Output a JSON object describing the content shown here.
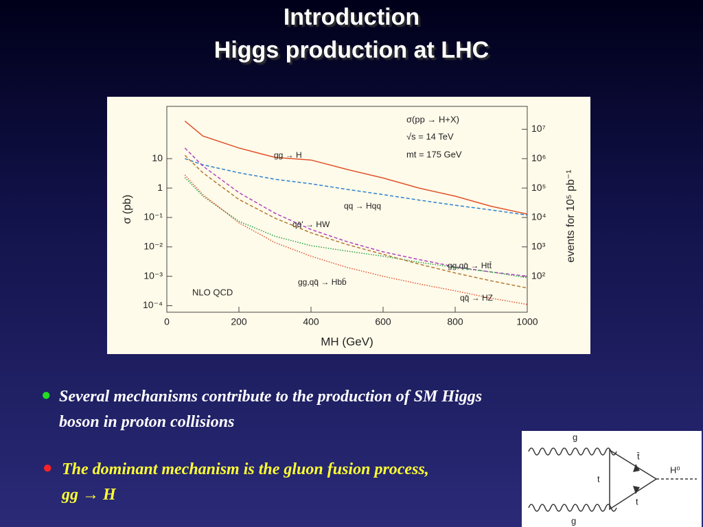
{
  "slide": {
    "title": [
      "Introduction",
      "Higgs production at LHC"
    ],
    "bullets": [
      "Several mechanisms contribute to the production of SM Higgs boson in proton collisions",
      "The dominant mechanism is the gluon fusion process,   gg → H"
    ],
    "diagram": {
      "labels": [
        "g",
        "t̄",
        "t",
        "t",
        "H⁰",
        "g"
      ]
    }
  },
  "chart_data": {
    "type": "line",
    "xlabel": "MH (GeV)",
    "ylabel": "σ (pb)",
    "y2label": "events for 10⁵ pb⁻¹",
    "annotations": [
      "σ(pp → H+X)",
      "√s = 14 TeV",
      "mt = 175 GeV",
      "NLO QCD"
    ],
    "x": [
      50,
      100,
      200,
      300,
      400,
      500,
      600,
      700,
      800,
      900,
      1000
    ],
    "xlim": [
      0,
      1000
    ],
    "xticks": [
      0,
      200,
      400,
      600,
      800,
      1000
    ],
    "ylim": [
      6e-05,
      600
    ],
    "log_y": true,
    "yticks": [
      {
        "value": 0.0001,
        "label": "10⁻⁴"
      },
      {
        "value": 0.001,
        "label": "10⁻³"
      },
      {
        "value": 0.01,
        "label": "10⁻²"
      },
      {
        "value": 0.1,
        "label": "10⁻¹"
      },
      1,
      10
    ],
    "y2lim": [
      6,
      60000000
    ],
    "y2ticks": [
      {
        "value": 100,
        "label": "10²"
      },
      {
        "value": 1000,
        "label": "10³"
      },
      {
        "value": 10000,
        "label": "10⁴"
      },
      {
        "value": 100000,
        "label": "10⁵"
      },
      {
        "value": 1000000,
        "label": "10⁶"
      },
      {
        "value": 10000000,
        "label": "10⁷"
      }
    ],
    "series": [
      {
        "name": "gg → H",
        "color": "#e0502a",
        "style": "solid",
        "values": [
          190,
          59,
          23,
          11,
          9,
          4.3,
          2.2,
          1,
          0.53,
          0.24,
          0.13
        ]
      },
      {
        "name": "qq → Hqq",
        "color": "#2a80d0",
        "style": "dashed",
        "values": [
          10,
          6.2,
          3.3,
          2,
          1.4,
          0.9,
          0.6,
          0.39,
          0.26,
          0.18,
          0.12
        ]
      },
      {
        "name": "qq̄' → HW",
        "color": "#b040c0",
        "style": "dashed",
        "values": [
          23,
          5.6,
          0.7,
          0.14,
          0.039,
          0.015,
          0.0068,
          0.0037,
          0.0021,
          0.0014,
          0.001
        ]
      },
      {
        "name": "gg,qq̄ → Htt̄",
        "color": "#20a040",
        "style": "dotted",
        "values": [
          2.3,
          0.53,
          0.074,
          0.023,
          0.011,
          0.0072,
          0.0048,
          0.003,
          0.002,
          0.0014,
          0.00089
        ]
      },
      {
        "name": "gg,qq̄ → Hbb̄",
        "color": "#e05030",
        "style": "dotted",
        "values": [
          2.8,
          0.6,
          0.066,
          0.014,
          0.0048,
          0.002,
          0.001,
          0.00055,
          0.00032,
          0.00018,
          0.00011
        ]
      },
      {
        "name": "qq̄ → HZ",
        "color": "#b07830",
        "style": "dashed",
        "values": [
          13,
          3.3,
          0.41,
          0.095,
          0.03,
          0.012,
          0.0056,
          0.0026,
          0.0013,
          0.0007,
          0.0004
        ]
      }
    ]
  }
}
